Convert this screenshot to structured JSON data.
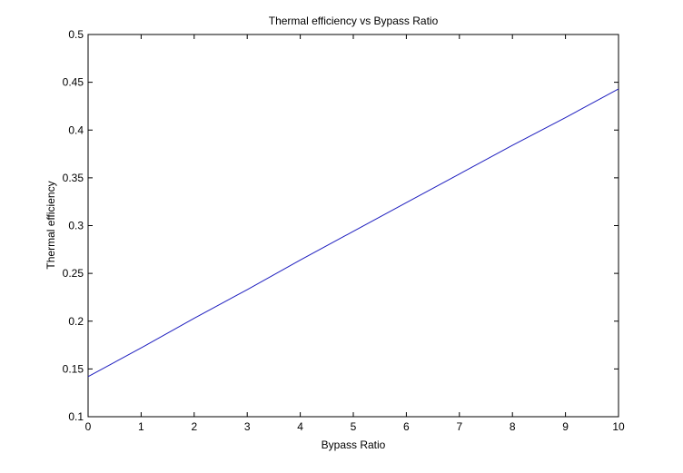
{
  "chart_data": {
    "type": "line",
    "title": "Thermal efficiency vs Bypass Ratio",
    "xlabel": "Bypass Ratio",
    "ylabel": "Thermal efficiency",
    "xlim": [
      0,
      10
    ],
    "ylim": [
      0.1,
      0.5
    ],
    "x_ticks": [
      "0",
      "1",
      "2",
      "3",
      "4",
      "5",
      "6",
      "7",
      "8",
      "9",
      "10"
    ],
    "y_ticks": [
      "0.1",
      "0.15",
      "0.2",
      "0.25",
      "0.3",
      "0.35",
      "0.4",
      "0.45",
      "0.5"
    ],
    "grid": false,
    "series": [
      {
        "color": "#1f1fbf",
        "x": [
          0,
          1,
          2,
          3,
          4,
          5,
          6,
          7,
          8,
          9,
          10
        ],
        "y": [
          0.142,
          0.172,
          0.203,
          0.233,
          0.264,
          0.294,
          0.324,
          0.354,
          0.384,
          0.413,
          0.443
        ]
      }
    ]
  }
}
